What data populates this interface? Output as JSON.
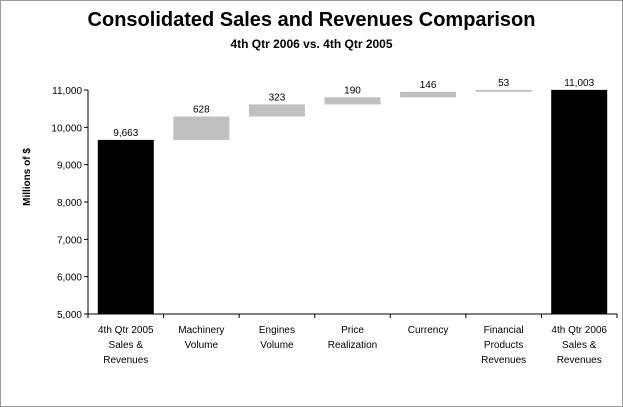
{
  "chart_data": {
    "type": "bar",
    "title": "Consolidated Sales and Revenues Comparison",
    "subtitle": "4th Qtr 2006 vs. 4th Qtr 2005",
    "xlabel": "",
    "ylabel": "Millions of $",
    "ylim": [
      5000,
      11000
    ],
    "yticks": [
      5000,
      6000,
      7000,
      8000,
      9000,
      10000,
      11000
    ],
    "ytick_labels": [
      "5,000",
      "6,000",
      "7,000",
      "8,000",
      "9,000",
      "10,000",
      "11,000"
    ],
    "grid": false,
    "legend": "none",
    "colors": {
      "total": "#000000",
      "change": "#c0c0c0"
    },
    "categories": [
      [
        "4th Qtr 2005",
        "Sales &",
        "Revenues"
      ],
      [
        "Machinery",
        "Volume"
      ],
      [
        "Engines",
        "Volume"
      ],
      [
        "Price",
        "Realization"
      ],
      [
        "Currency"
      ],
      [
        "Financial",
        "Products",
        "Revenues"
      ],
      [
        "4th Qtr 2006",
        "Sales &",
        "Revenues"
      ]
    ],
    "bars": [
      {
        "kind": "total",
        "start": 5000,
        "end": 9663,
        "label": "9,663"
      },
      {
        "kind": "change",
        "start": 9663,
        "end": 10291,
        "label": "628"
      },
      {
        "kind": "change",
        "start": 10291,
        "end": 10614,
        "label": "323"
      },
      {
        "kind": "change",
        "start": 10614,
        "end": 10804,
        "label": "190"
      },
      {
        "kind": "change",
        "start": 10804,
        "end": 10950,
        "label": "146"
      },
      {
        "kind": "change",
        "start": 10950,
        "end": 11003,
        "label": "53"
      },
      {
        "kind": "total",
        "start": 5000,
        "end": 11003,
        "label": "11,003"
      }
    ]
  }
}
